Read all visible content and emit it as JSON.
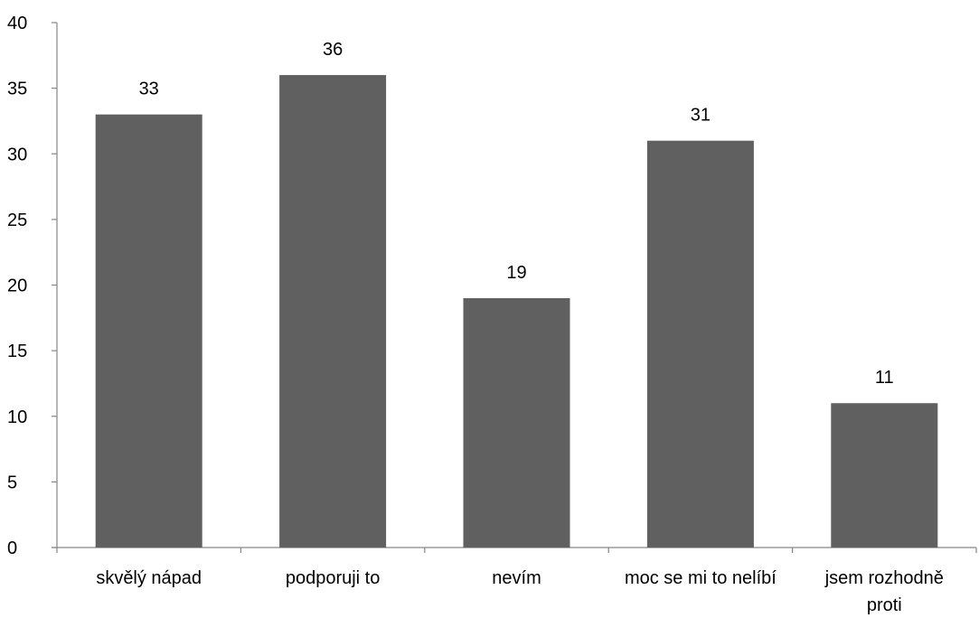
{
  "chart_data": {
    "type": "bar",
    "title": "",
    "xlabel": "",
    "ylabel": "",
    "categories": [
      "skvělý nápad",
      "podporuji to",
      "nevím",
      "moc se mi to nelíbí",
      "jsem rozhodně proti"
    ],
    "category_lines": [
      [
        "skvělý nápad"
      ],
      [
        "podporuji to"
      ],
      [
        "nevím"
      ],
      [
        "moc se mi to nelíbí"
      ],
      [
        "jsem rozhodně",
        "proti"
      ]
    ],
    "values": [
      33,
      36,
      19,
      31,
      11
    ],
    "data_labels": [
      "33",
      "36",
      "19",
      "31",
      "11"
    ],
    "ylim": [
      0,
      40
    ],
    "yticks": [
      0,
      5,
      10,
      15,
      20,
      25,
      30,
      35,
      40
    ],
    "grid": false,
    "legend": "none",
    "colors": {
      "bar": "#606060",
      "axis": "#868686",
      "text": "#000000"
    }
  }
}
